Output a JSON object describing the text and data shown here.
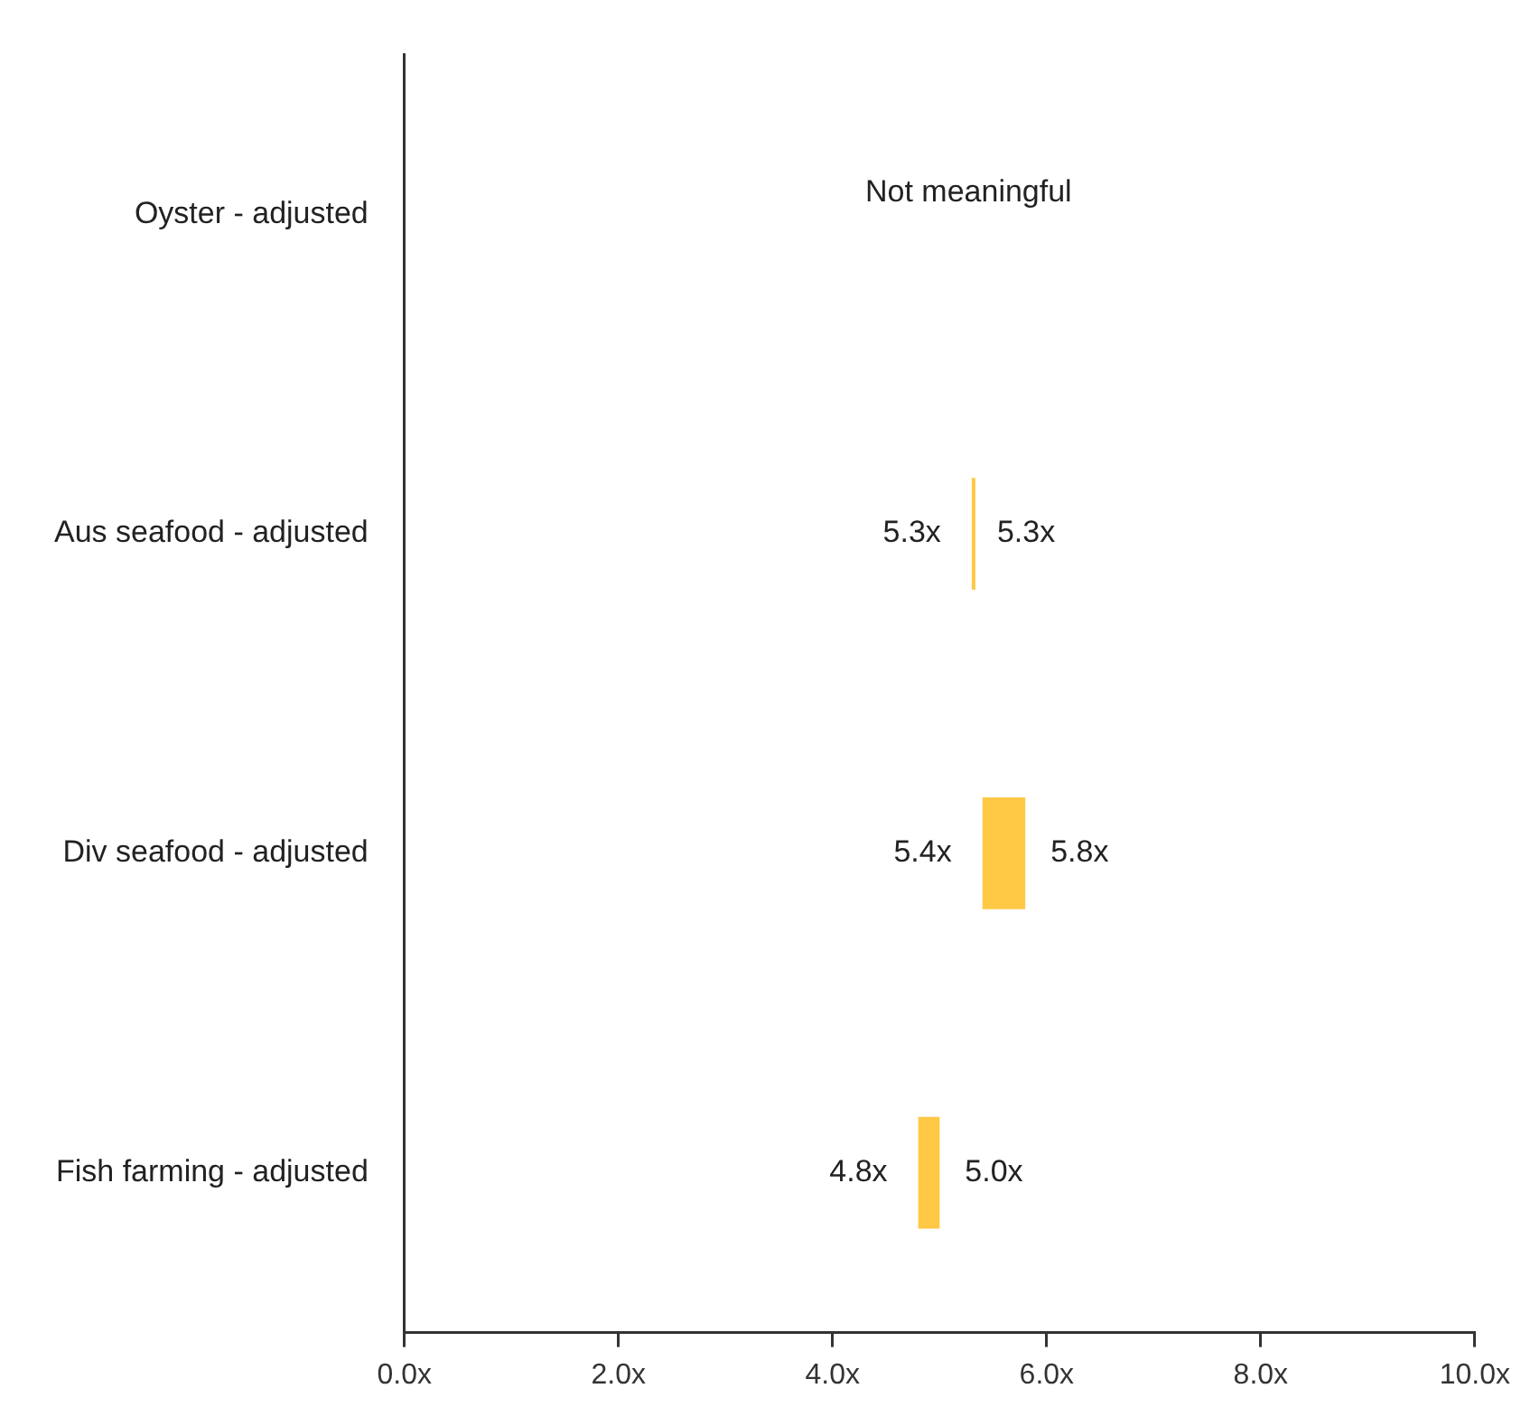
{
  "chart_data": {
    "type": "bar",
    "orientation": "horizontal",
    "categories": [
      "Oyster - adjusted",
      "Aus seafood - adjusted",
      "Div seafood - adjusted",
      "Fish farming - adjusted"
    ],
    "base": [
      null,
      5.3,
      5.4,
      4.8
    ],
    "values": [
      null,
      0,
      0.4,
      0.2
    ],
    "color": "#ffc845",
    "xlim": [
      0,
      10
    ],
    "xticks": [
      {
        "value": 0,
        "label": "0.0x"
      },
      {
        "value": 2,
        "label": "2.0x"
      },
      {
        "value": 4,
        "label": "4.0x"
      },
      {
        "value": 6,
        "label": "6.0x"
      },
      {
        "value": 8,
        "label": "8.0x"
      },
      {
        "value": 10,
        "label": "10.0x"
      }
    ],
    "grid": false,
    "legend": false,
    "annotations": [
      "Not meaningful",
      {
        "text": "5.3x",
        "x": 5.3,
        "y": "Aus seafood - adjusted"
      },
      {
        "text": "5.3x",
        "x": 5.3,
        "y": "Aus seafood - adjusted"
      },
      {
        "text": "5.4x",
        "x": 5.4,
        "y": "Div seafood - adjusted"
      },
      {
        "text": "5.8x",
        "x": 5.8,
        "y": "Div seafood - adjusted"
      },
      {
        "text": "4.8x",
        "x": 4.8,
        "y": "Fish farming - adjusted"
      },
      {
        "text": "5.0x",
        "x": 5.0,
        "y": "Fish farming - adjusted"
      }
    ]
  }
}
